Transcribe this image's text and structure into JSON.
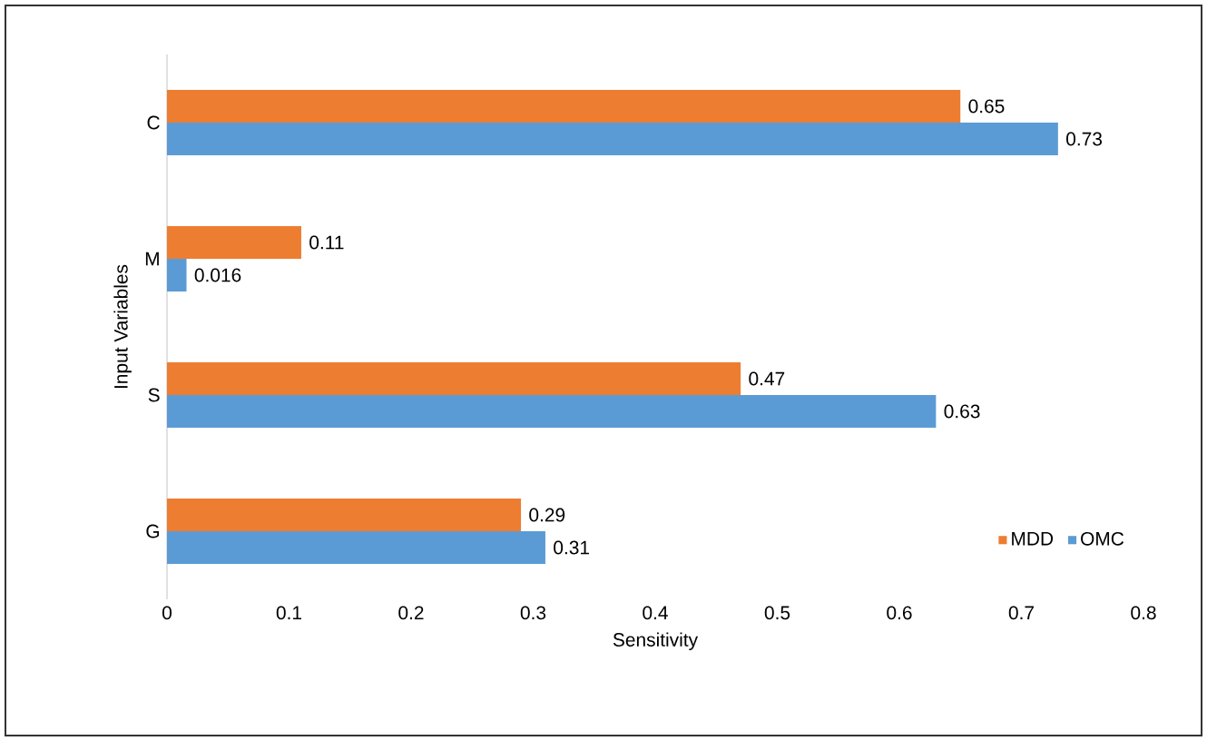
{
  "chart_data": {
    "type": "bar",
    "orientation": "horizontal",
    "xlabel": "Sensitivity",
    "ylabel": "Input Variables",
    "categories": [
      "C",
      "M",
      "S",
      "G"
    ],
    "series": [
      {
        "name": "MDD",
        "color": "#ed7d31",
        "values": [
          0.65,
          0.11,
          0.47,
          0.29
        ]
      },
      {
        "name": "OMC",
        "color": "#5b9bd5",
        "values": [
          0.73,
          0.016,
          0.63,
          0.31
        ]
      }
    ],
    "xlim": [
      0,
      0.8
    ],
    "xticks": [
      0,
      0.1,
      0.2,
      0.3,
      0.4,
      0.5,
      0.6,
      0.7,
      0.8
    ],
    "data_labels": true,
    "legend": "bottom right",
    "grid": false
  }
}
